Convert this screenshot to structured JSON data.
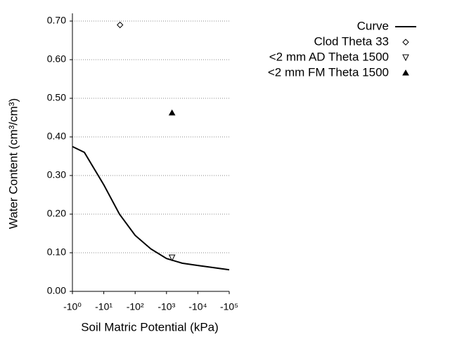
{
  "chart_data": {
    "type": "scatter-line",
    "xlabel": "Soil Matric Potential (kPa)",
    "ylabel": "Water Content (cm³/cm³)",
    "xscale": "log",
    "xlim": [
      1,
      100000
    ],
    "xticks": [
      {
        "value": 1,
        "label": "-10⁰"
      },
      {
        "value": 10,
        "label": "-10¹"
      },
      {
        "value": 100,
        "label": "-10²"
      },
      {
        "value": 1000,
        "label": "-10³"
      },
      {
        "value": 10000,
        "label": "-10⁴"
      },
      {
        "value": 100000,
        "label": "-10⁵"
      }
    ],
    "ylim": [
      0,
      0.72
    ],
    "yticks": [
      {
        "value": 0,
        "label": "0.00"
      },
      {
        "value": 0.1,
        "label": "0.10"
      },
      {
        "value": 0.2,
        "label": "0.20"
      },
      {
        "value": 0.3,
        "label": "0.30"
      },
      {
        "value": 0.4,
        "label": "0.40"
      },
      {
        "value": 0.5,
        "label": "0.50"
      },
      {
        "value": 0.6,
        "label": "0.60"
      },
      {
        "value": 0.7,
        "label": "0.70"
      }
    ],
    "grid": true,
    "legend": "right",
    "series": [
      {
        "name": "Curve",
        "kind": "line",
        "color": "#000000",
        "x": [
          1,
          2.4,
          10,
          31.6,
          100,
          316,
          1000,
          3162,
          10000,
          100000
        ],
        "values": [
          0.375,
          0.36,
          0.276,
          0.2,
          0.145,
          0.11,
          0.085,
          0.073,
          0.067,
          0.056
        ]
      },
      {
        "name": "Clod Theta 33",
        "kind": "point",
        "marker": "diamond",
        "color": "#000000",
        "x": [
          33
        ],
        "values": [
          0.69
        ]
      },
      {
        "name": "<2 mm AD Theta 1500",
        "kind": "point",
        "marker": "triangle-down",
        "color": "#000000",
        "x": [
          1500
        ],
        "values": [
          0.087
        ]
      },
      {
        "name": "<2 mm FM Theta 1500",
        "kind": "point",
        "marker": "triangle-up",
        "color": "#000000",
        "x": [
          1500
        ],
        "values": [
          0.462
        ]
      }
    ]
  }
}
